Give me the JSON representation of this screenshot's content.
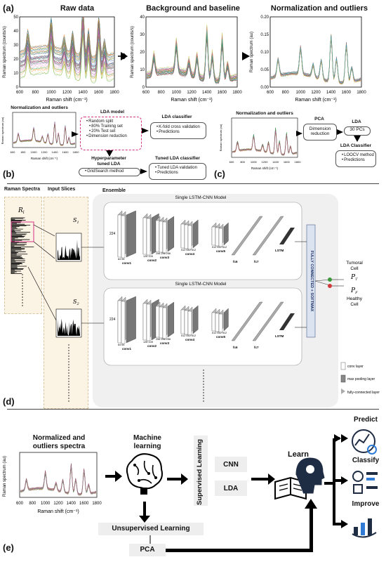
{
  "panels": {
    "a": "(a)",
    "b": "(b)",
    "c": "(c)",
    "d": "(d)",
    "e": "(e)"
  },
  "panel_a": {
    "chart1": {
      "title": "Raw data",
      "ylabel": "Raman spectrum (counts/s)",
      "xlabel": "Raman shift (cm⁻¹)",
      "xticks": [
        "600",
        "800",
        "1000",
        "1200",
        "1400",
        "1600",
        "1800"
      ],
      "yticks": [
        "0",
        "10",
        "20",
        "30",
        "40",
        "50"
      ]
    },
    "chart2": {
      "title": "Background and baseline",
      "ylabel": "Raman spectrum (counts/s)",
      "xlabel": "Raman shift (cm⁻¹)",
      "xticks": [
        "600",
        "800",
        "1000",
        "1200",
        "1400",
        "1600",
        "1800"
      ],
      "yticks": [
        "0",
        "10",
        "20",
        "30",
        "40"
      ]
    },
    "chart3": {
      "title": "Normalization and outliers",
      "ylabel": "Raman spectrum (au)",
      "xlabel": "Raman shift (cm⁻¹)",
      "xticks": [
        "600",
        "800",
        "1000",
        "1200",
        "1400",
        "1600",
        "1800"
      ],
      "yticks": [
        "0.00",
        "0.05",
        "0.10",
        "0.15",
        "0.20"
      ]
    }
  },
  "panel_b": {
    "chart_title": "Normalization and outliers",
    "ylabel": "Raman spectrum (au)",
    "xlabel": "Raman shift (cm⁻¹)",
    "xticks": [
      "600",
      "800",
      "1000",
      "1200",
      "1400",
      "1600",
      "1800"
    ],
    "yticks": [
      "0.00",
      "0.05",
      "0.10",
      "0.15",
      "0.20"
    ],
    "lda_model": {
      "title": "LDA model",
      "items": [
        "Random split",
        "80% Training set",
        "20% Test set",
        "Dimension reduction"
      ]
    },
    "lda_classifier": {
      "title": "LDA classifier",
      "items": [
        "K-fold cross validation",
        "Predictions"
      ]
    },
    "hyper": {
      "title1": "Hyperparameter",
      "title2": "tuned LDA",
      "items": [
        "GridSearch method"
      ]
    },
    "tuned": {
      "title": "Tuned LDA classifier",
      "items": [
        "Tuned LDA validation",
        "Predictions"
      ]
    }
  },
  "panel_c": {
    "chart_title": "Normalization and outliers",
    "ylabel": "Raman spectrum (au)",
    "xlabel": "Raman shift (cm⁻¹)",
    "xticks": [
      "600",
      "800",
      "1000",
      "1200",
      "1400",
      "1600",
      "1800"
    ],
    "yticks": [
      "0.00",
      "0.05",
      "0.10",
      "0.15",
      "0.20"
    ],
    "pca": {
      "title": "PCA",
      "box1": "Dimension",
      "box2": "reduction"
    },
    "lda": {
      "title": "LDA",
      "box": "30 PCs"
    },
    "lda_classifier": {
      "title": "LDA Classifier",
      "items": [
        "LOOCV method",
        "Predictions"
      ]
    }
  },
  "panel_d": {
    "raman_spectra": "Raman Spectra",
    "input_slices": "Input Slices",
    "ensemble": "Ensemble",
    "ri": "R",
    "ri_sub": "i",
    "s1": "S",
    "s1_sub": "1",
    "s2_sub": "2",
    "model_title": "Single  LSTM-CNN Model",
    "fc_label": "FULLY CONNECTED + SOFTMAX",
    "conv_labels": [
      "conv1",
      "conv2",
      "conv3",
      "conv4",
      "conv5",
      "fc6",
      "fc7",
      "LSTM"
    ],
    "size_224": "224",
    "channels": [
      "64 64",
      "128 128",
      "256 256 256",
      "512 512 512",
      "512 512 512"
    ],
    "tumoral": "Tumoral",
    "cell": "Cell",
    "healthy": "Healthy",
    "pt": "P",
    "pt_sub": "T",
    "pf": "P",
    "pf_sub": "F",
    "legend": [
      "conv layer",
      "max pooling layer",
      "fully-connected layer"
    ]
  },
  "panel_e": {
    "chart_title1": "Normalized and",
    "chart_title2": "outliers spectra",
    "ylabel": "Raman spectrum (au)",
    "xlabel": "Raman shift (cm⁻¹)",
    "xticks": [
      "600",
      "800",
      "1000",
      "1200",
      "1400",
      "1600",
      "1800"
    ],
    "yticks": [
      "0.00",
      "0.05",
      "0.10",
      "0.15",
      "0.20"
    ],
    "ml1": "Machine",
    "ml2": "learning",
    "supervised": "Supervised Learning",
    "cnn": "CNN",
    "lda": "LDA",
    "unsupervised": "Unsupervised Learning",
    "pca": "PCA",
    "learn": "Learn",
    "predict": "Predict",
    "classify": "Classify",
    "improve": "Improve"
  },
  "colors": {
    "accent_pink": "#d63384",
    "box_fill": "#f2f2f2",
    "beige": "#fbf3e4",
    "ensemble": "#f0f0f0"
  }
}
